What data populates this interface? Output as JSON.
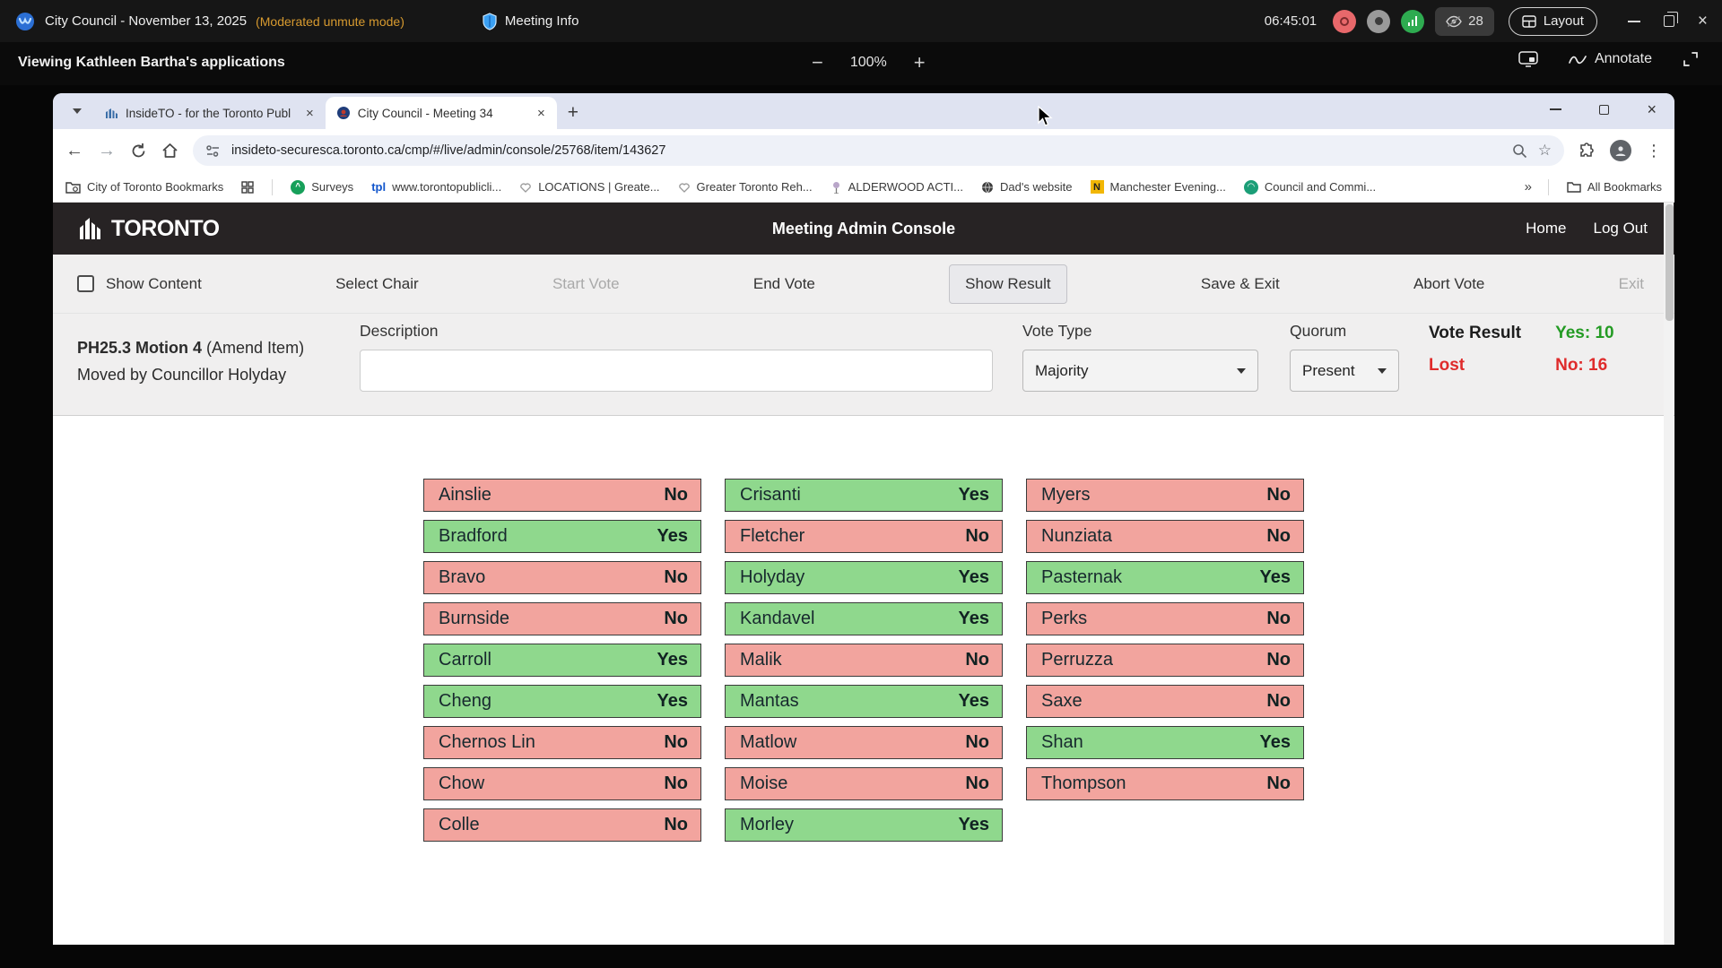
{
  "meeting_bar": {
    "title": "City Council - November 13, 2025",
    "mode": "(Moderated unmute mode)",
    "meeting_info": "Meeting Info",
    "time": "06:45:01",
    "hidden_count": "28",
    "layout_label": "Layout"
  },
  "share_bar": {
    "viewing": "Viewing Kathleen Bartha's applications",
    "zoom_out": "−",
    "zoom_level": "100%",
    "zoom_in": "+",
    "annotate_label": "Annotate"
  },
  "browser": {
    "tabs": [
      {
        "title": "InsideTO - for the Toronto Publ"
      },
      {
        "title": "City Council - Meeting 34"
      }
    ],
    "url": "insideto-securesca.toronto.ca/cmp/#/live/admin/console/25768/item/143627",
    "bookmarks": [
      "City of Toronto Bookmarks",
      "Surveys",
      "www.torontopublicli...",
      "LOCATIONS | Greate...",
      "Greater Toronto Reh...",
      "ALDERWOOD ACTI...",
      "Dad's website",
      "Manchester Evening...",
      "Council and Commi...",
      "All Bookmarks"
    ],
    "overflow_chevrons": "»"
  },
  "app_header": {
    "brand": "Toronto",
    "title": "Meeting Admin Console",
    "home": "Home",
    "logout": "Log Out"
  },
  "toolbar": {
    "show_content": "Show Content",
    "select_chair": "Select Chair",
    "start_vote": "Start Vote",
    "end_vote": "End Vote",
    "show_result": "Show Result",
    "save_exit": "Save & Exit",
    "abort_vote": "Abort Vote",
    "exit": "Exit"
  },
  "motion": {
    "title_bold": "PH25.3 Motion 4",
    "title_suffix": " (Amend Item)",
    "moved_by": "Moved by Councillor Holyday",
    "description_label": "Description",
    "description_value": "",
    "vote_type_label": "Vote Type",
    "vote_type_value": "Majority",
    "quorum_label": "Quorum",
    "quorum_value": "Present",
    "result_label": "Vote Result",
    "result_value": "Lost",
    "yes_total": "Yes: 10",
    "no_total": "No: 16"
  },
  "votes": {
    "columns": [
      [
        {
          "name": "Ainslie",
          "vote": "No"
        },
        {
          "name": "Bradford",
          "vote": "Yes"
        },
        {
          "name": "Bravo",
          "vote": "No"
        },
        {
          "name": "Burnside",
          "vote": "No"
        },
        {
          "name": "Carroll",
          "vote": "Yes"
        },
        {
          "name": "Cheng",
          "vote": "Yes"
        },
        {
          "name": "Chernos Lin",
          "vote": "No"
        },
        {
          "name": "Chow",
          "vote": "No"
        },
        {
          "name": "Colle",
          "vote": "No"
        }
      ],
      [
        {
          "name": "Crisanti",
          "vote": "Yes"
        },
        {
          "name": "Fletcher",
          "vote": "No"
        },
        {
          "name": "Holyday",
          "vote": "Yes"
        },
        {
          "name": "Kandavel",
          "vote": "Yes"
        },
        {
          "name": "Malik",
          "vote": "No"
        },
        {
          "name": "Mantas",
          "vote": "Yes"
        },
        {
          "name": "Matlow",
          "vote": "No"
        },
        {
          "name": "Moise",
          "vote": "No"
        },
        {
          "name": "Morley",
          "vote": "Yes"
        }
      ],
      [
        {
          "name": "Myers",
          "vote": "No"
        },
        {
          "name": "Nunziata",
          "vote": "No"
        },
        {
          "name": "Pasternak",
          "vote": "Yes"
        },
        {
          "name": "Perks",
          "vote": "No"
        },
        {
          "name": "Perruzza",
          "vote": "No"
        },
        {
          "name": "Saxe",
          "vote": "No"
        },
        {
          "name": "Shan",
          "vote": "Yes"
        },
        {
          "name": "Thompson",
          "vote": "No"
        }
      ]
    ]
  },
  "colors": {
    "yes_bg": "#8fd88d",
    "no_bg": "#f2a49e",
    "yes_fg": "#249b24",
    "no_fg": "#df2b2b",
    "mode_fg": "#d79a2f"
  }
}
